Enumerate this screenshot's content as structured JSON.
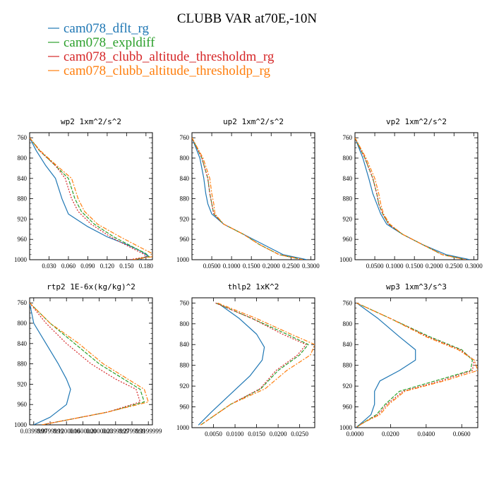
{
  "title": "CLUBB VAR at70E,-10N",
  "legend": {
    "items": [
      {
        "label": "cam078_dflt_rg",
        "color": "#1f77b4"
      },
      {
        "label": "cam078_expldiff",
        "color": "#2ca02c"
      },
      {
        "label": "cam078_clubb_altitude_thresholdm_rg",
        "color": "#d62728"
      },
      {
        "label": "cam078_clubb_altitude_thresholdp_rg",
        "color": "#ff7f0e"
      }
    ]
  },
  "chart_data": [
    {
      "type": "line",
      "title": "wp2  1xm^2/s^2",
      "xlim": [
        0,
        0.19
      ],
      "ylim": [
        1000,
        750
      ],
      "xticks": [
        "0.030",
        "0.060",
        "0.090",
        "0.120",
        "0.150",
        "0.180"
      ],
      "yticks": [
        "760",
        "800",
        "840",
        "880",
        "920",
        "960",
        "1000"
      ],
      "series": [
        {
          "name": "cam078_dflt_rg",
          "color": "#1f77b4",
          "dash": "",
          "x": [
            0.0,
            0.01,
            0.025,
            0.04,
            0.045,
            0.05,
            0.06,
            0.09,
            0.12,
            0.15,
            0.17,
            0.183,
            0.17
          ],
          "y": [
            760,
            785,
            815,
            840,
            860,
            880,
            910,
            935,
            955,
            970,
            982,
            992,
            1000
          ]
        },
        {
          "name": "cam078_expldiff",
          "color": "#2ca02c",
          "dash": "5,2",
          "x": [
            0.0,
            0.015,
            0.04,
            0.06,
            0.065,
            0.07,
            0.08,
            0.1,
            0.13,
            0.16,
            0.18,
            0.185,
            0.16
          ],
          "y": [
            760,
            785,
            815,
            840,
            860,
            880,
            905,
            930,
            955,
            975,
            988,
            994,
            1000
          ]
        },
        {
          "name": "cam078_clubb_altitude_thresholdm_rg",
          "color": "#d62728",
          "dash": "2,2",
          "x": [
            0.0,
            0.015,
            0.04,
            0.055,
            0.06,
            0.065,
            0.075,
            0.095,
            0.125,
            0.155,
            0.175,
            0.182,
            0.155
          ],
          "y": [
            760,
            785,
            815,
            840,
            860,
            880,
            905,
            930,
            955,
            975,
            988,
            994,
            1000
          ]
        },
        {
          "name": "cam078_clubb_altitude_thresholdp_rg",
          "color": "#ff7f0e",
          "dash": "6,2,2,2",
          "x": [
            0.0,
            0.016,
            0.042,
            0.065,
            0.07,
            0.075,
            0.085,
            0.105,
            0.14,
            0.17,
            0.19,
            0.19,
            0.16
          ],
          "y": [
            760,
            785,
            815,
            840,
            860,
            880,
            905,
            930,
            955,
            975,
            988,
            994,
            1000
          ]
        }
      ]
    },
    {
      "type": "line",
      "title": "up2  1xm^2/s^2",
      "xlim": [
        0,
        0.31
      ],
      "ylim": [
        1000,
        750
      ],
      "xticks": [
        "0.0500",
        "0.1000",
        "0.1500",
        "0.2000",
        "0.2500",
        "0.3000"
      ],
      "yticks": [
        "760",
        "800",
        "840",
        "880",
        "920",
        "960",
        "1000"
      ],
      "series": [
        {
          "name": "cam078_dflt_rg",
          "color": "#1f77b4",
          "dash": "",
          "x": [
            0.0,
            0.02,
            0.03,
            0.035,
            0.04,
            0.05,
            0.08,
            0.13,
            0.18,
            0.23,
            0.29
          ],
          "y": [
            760,
            800,
            840,
            870,
            890,
            910,
            930,
            950,
            970,
            990,
            1000
          ]
        },
        {
          "name": "cam078_expldiff",
          "color": "#2ca02c",
          "dash": "5,2",
          "x": [
            0.0,
            0.025,
            0.04,
            0.045,
            0.05,
            0.055,
            0.08,
            0.13,
            0.17,
            0.22,
            0.28
          ],
          "y": [
            760,
            800,
            840,
            870,
            890,
            910,
            930,
            950,
            970,
            990,
            1000
          ]
        },
        {
          "name": "cam078_clubb_altitude_thresholdm_rg",
          "color": "#d62728",
          "dash": "2,2",
          "x": [
            0.0,
            0.025,
            0.04,
            0.045,
            0.05,
            0.055,
            0.08,
            0.13,
            0.17,
            0.22,
            0.28
          ],
          "y": [
            760,
            800,
            840,
            870,
            890,
            910,
            930,
            950,
            970,
            990,
            1000
          ]
        },
        {
          "name": "cam078_clubb_altitude_thresholdp_rg",
          "color": "#ff7f0e",
          "dash": "6,2,2,2",
          "x": [
            0.0,
            0.028,
            0.045,
            0.05,
            0.055,
            0.058,
            0.08,
            0.13,
            0.17,
            0.22,
            0.28
          ],
          "y": [
            760,
            800,
            840,
            870,
            890,
            910,
            930,
            950,
            970,
            990,
            1000
          ]
        }
      ]
    },
    {
      "type": "line",
      "title": "vp2  1xm^2/s^2",
      "xlim": [
        0,
        0.31
      ],
      "ylim": [
        1000,
        750
      ],
      "xticks": [
        "0.0500",
        "0.1000",
        "0.1500",
        "0.2000",
        "0.2500",
        "0.3000"
      ],
      "yticks": [
        "760",
        "800",
        "840",
        "880",
        "920",
        "960",
        "1000"
      ],
      "series": [
        {
          "name": "cam078_dflt_rg",
          "color": "#1f77b4",
          "dash": "",
          "x": [
            0.0,
            0.02,
            0.035,
            0.045,
            0.055,
            0.065,
            0.08,
            0.12,
            0.17,
            0.23,
            0.29
          ],
          "y": [
            760,
            800,
            840,
            870,
            890,
            910,
            930,
            950,
            970,
            990,
            1000
          ]
        },
        {
          "name": "cam078_expldiff",
          "color": "#2ca02c",
          "dash": "5,2",
          "x": [
            0.0,
            0.025,
            0.045,
            0.055,
            0.06,
            0.07,
            0.085,
            0.12,
            0.17,
            0.22,
            0.28
          ],
          "y": [
            760,
            800,
            840,
            870,
            890,
            910,
            930,
            950,
            970,
            990,
            1000
          ]
        },
        {
          "name": "cam078_clubb_altitude_thresholdm_rg",
          "color": "#d62728",
          "dash": "2,2",
          "x": [
            0.0,
            0.025,
            0.045,
            0.055,
            0.06,
            0.07,
            0.085,
            0.12,
            0.17,
            0.22,
            0.28
          ],
          "y": [
            760,
            800,
            840,
            870,
            890,
            910,
            930,
            950,
            970,
            990,
            1000
          ]
        },
        {
          "name": "cam078_clubb_altitude_thresholdp_rg",
          "color": "#ff7f0e",
          "dash": "6,2,2,2",
          "x": [
            0.0,
            0.028,
            0.05,
            0.06,
            0.065,
            0.072,
            0.088,
            0.12,
            0.17,
            0.22,
            0.28
          ],
          "y": [
            760,
            800,
            840,
            870,
            890,
            910,
            930,
            950,
            970,
            990,
            1000
          ]
        }
      ]
    },
    {
      "type": "line",
      "title": "rtp2  1E-6x(kg/kg)^2",
      "xlim": [
        0.03,
        0.33
      ],
      "ylim": [
        1000,
        750
      ],
      "xticks": [
        "0.0399999",
        "0.0799999",
        "0.1200000",
        "0.1600000",
        "0.2000000",
        "0.2399999",
        "0.2799999",
        "0.3199999"
      ],
      "yticks": [
        "760",
        "800",
        "840",
        "880",
        "920",
        "960",
        "1000"
      ],
      "series": [
        {
          "name": "cam078_dflt_rg",
          "color": "#1f77b4",
          "dash": "",
          "x": [
            0.03,
            0.04,
            0.07,
            0.1,
            0.12,
            0.13,
            0.12,
            0.08,
            0.04
          ],
          "y": [
            760,
            800,
            840,
            880,
            910,
            930,
            960,
            985,
            1000
          ]
        },
        {
          "name": "cam078_expldiff",
          "color": "#2ca02c",
          "dash": "5,2",
          "x": [
            0.03,
            0.08,
            0.14,
            0.2,
            0.26,
            0.3,
            0.31,
            0.22,
            0.06
          ],
          "y": [
            760,
            800,
            840,
            880,
            910,
            930,
            955,
            975,
            1000
          ]
        },
        {
          "name": "cam078_clubb_altitude_thresholdm_rg",
          "color": "#d62728",
          "dash": "2,2",
          "x": [
            0.03,
            0.07,
            0.12,
            0.18,
            0.24,
            0.29,
            0.3,
            0.22,
            0.06
          ],
          "y": [
            760,
            800,
            840,
            880,
            910,
            930,
            955,
            975,
            1000
          ]
        },
        {
          "name": "cam078_clubb_altitude_thresholdp_rg",
          "color": "#ff7f0e",
          "dash": "6,2,2,2",
          "x": [
            0.03,
            0.08,
            0.15,
            0.21,
            0.27,
            0.31,
            0.32,
            0.22,
            0.06
          ],
          "y": [
            760,
            800,
            840,
            880,
            910,
            930,
            955,
            975,
            1000
          ]
        }
      ]
    },
    {
      "type": "line",
      "title": "thlp2  1xK^2",
      "xlim": [
        0.0,
        0.0285
      ],
      "ylim": [
        1000,
        750
      ],
      "xticks": [
        "0.0050",
        "0.0100",
        "0.0150",
        "0.0200",
        "0.0250"
      ],
      "yticks": [
        "760",
        "800",
        "840",
        "880",
        "920",
        "960",
        "1000"
      ],
      "series": [
        {
          "name": "cam078_dflt_rg",
          "color": "#1f77b4",
          "dash": "",
          "x": [
            0.006,
            0.011,
            0.015,
            0.0168,
            0.0163,
            0.0135,
            0.009,
            0.0045,
            0.0015
          ],
          "y": [
            760,
            790,
            820,
            845,
            870,
            900,
            935,
            970,
            995
          ]
        },
        {
          "name": "cam078_expldiff",
          "color": "#2ca02c",
          "dash": "5,2",
          "x": [
            0.0055,
            0.014,
            0.022,
            0.027,
            0.025,
            0.02,
            0.016,
            0.009,
            0.002
          ],
          "y": [
            760,
            790,
            820,
            840,
            860,
            890,
            925,
            955,
            995
          ]
        },
        {
          "name": "cam078_clubb_altitude_thresholdm_rg",
          "color": "#d62728",
          "dash": "2,2",
          "x": [
            0.0055,
            0.014,
            0.021,
            0.0265,
            0.0245,
            0.0195,
            0.0158,
            0.009,
            0.002
          ],
          "y": [
            760,
            790,
            820,
            840,
            860,
            890,
            925,
            955,
            995
          ]
        },
        {
          "name": "cam078_clubb_altitude_thresholdp_rg",
          "color": "#ff7f0e",
          "dash": "6,2,2,2",
          "x": [
            0.006,
            0.015,
            0.023,
            0.0285,
            0.0275,
            0.022,
            0.017,
            0.009,
            0.002
          ],
          "y": [
            760,
            790,
            820,
            840,
            860,
            890,
            925,
            955,
            995
          ]
        }
      ]
    },
    {
      "type": "line",
      "title": "wp3  1xm^3/s^3",
      "xlim": [
        0.0,
        0.069
      ],
      "ylim": [
        1000,
        750
      ],
      "xticks": [
        "0.0000",
        "0.0200",
        "0.0400",
        "0.0600"
      ],
      "yticks": [
        "760",
        "800",
        "840",
        "880",
        "920",
        "960",
        "1000"
      ],
      "series": [
        {
          "name": "cam078_dflt_rg",
          "color": "#1f77b4",
          "dash": "",
          "x": [
            0.001,
            0.013,
            0.025,
            0.034,
            0.034,
            0.025,
            0.014,
            0.011,
            0.011,
            0.009,
            0.004,
            0.0005
          ],
          "y": [
            760,
            790,
            825,
            850,
            870,
            890,
            910,
            930,
            955,
            975,
            990,
            1000
          ]
        },
        {
          "name": "cam078_expldiff",
          "color": "#2ca02c",
          "dash": "5,2",
          "x": [
            0.001,
            0.02,
            0.042,
            0.06,
            0.066,
            0.065,
            0.045,
            0.025,
            0.017,
            0.012,
            0.005,
            0.0005
          ],
          "y": [
            760,
            790,
            825,
            850,
            870,
            890,
            910,
            930,
            955,
            975,
            990,
            1000
          ]
        },
        {
          "name": "cam078_clubb_altitude_thresholdm_rg",
          "color": "#d62728",
          "dash": "2,2",
          "x": [
            0.001,
            0.02,
            0.041,
            0.059,
            0.067,
            0.066,
            0.048,
            0.027,
            0.018,
            0.013,
            0.005,
            0.0005
          ],
          "y": [
            760,
            790,
            825,
            850,
            870,
            890,
            910,
            930,
            955,
            975,
            990,
            1000
          ]
        },
        {
          "name": "cam078_clubb_altitude_thresholdp_rg",
          "color": "#ff7f0e",
          "dash": "6,2,2,2",
          "x": [
            0.001,
            0.02,
            0.04,
            0.058,
            0.067,
            0.069,
            0.05,
            0.028,
            0.019,
            0.014,
            0.005,
            0.0005
          ],
          "y": [
            760,
            790,
            825,
            850,
            870,
            890,
            910,
            930,
            955,
            975,
            990,
            1000
          ]
        }
      ]
    }
  ]
}
